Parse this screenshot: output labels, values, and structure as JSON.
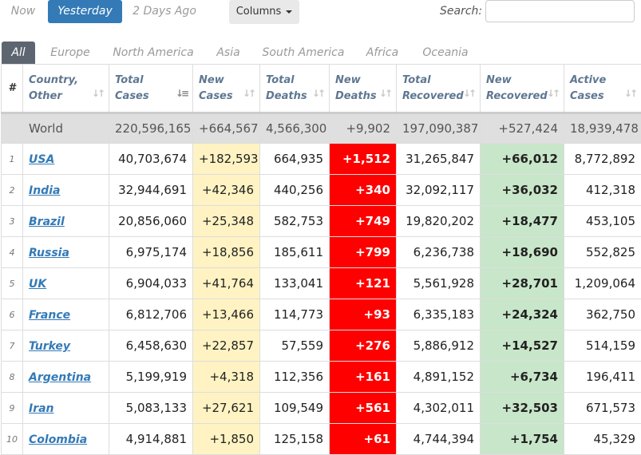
{
  "day_selector": {
    "now": "Now",
    "yesterday": "Yesterday",
    "two_days_ago": "2 Days Ago",
    "selected": "Yesterday"
  },
  "columns_button": {
    "label": "Columns"
  },
  "search": {
    "label": "Search:",
    "value": "",
    "placeholder": ""
  },
  "region_tabs": [
    "All",
    "Europe",
    "North America",
    "Asia",
    "South America",
    "Africa",
    "Oceania"
  ],
  "active_tab": "All",
  "colors": {
    "accent": "#337ab7",
    "new_cases_bg": "#fff3c3",
    "new_deaths_bg": "#ff0000",
    "new_recovered_bg": "#c8e6c9"
  },
  "table": {
    "headers": {
      "num": "#",
      "country_line1": "Country,",
      "country_line2": "Other",
      "total_cases_line1": "Total",
      "total_cases_line2": "Cases",
      "new_cases_line1": "New",
      "new_cases_line2": "Cases",
      "total_deaths_line1": "Total",
      "total_deaths_line2": "Deaths",
      "new_deaths_line1": "New",
      "new_deaths_line2": "Deaths",
      "total_recovered_line1": "Total",
      "total_recovered_line2": "Recovered",
      "new_recovered_line1": "New",
      "new_recovered_line2": "Recovered",
      "active_cases_line1": "Active",
      "active_cases_line2": "Cases"
    },
    "sorted_column": "Total Cases",
    "world": {
      "name": "World",
      "total_cases": "220,596,165",
      "new_cases": "+664,567",
      "total_deaths": "4,566,300",
      "new_deaths": "+9,902",
      "total_recovered": "197,090,387",
      "new_recovered": "+527,424",
      "active_cases": "18,939,478"
    },
    "rows": [
      {
        "num": "1",
        "country": "USA",
        "total_cases": "40,703,674",
        "new_cases": "+182,593",
        "total_deaths": "664,935",
        "new_deaths": "+1,512",
        "total_recovered": "31,265,847",
        "new_recovered": "+66,012",
        "active_cases": "8,772,892"
      },
      {
        "num": "2",
        "country": "India",
        "total_cases": "32,944,691",
        "new_cases": "+42,346",
        "total_deaths": "440,256",
        "new_deaths": "+340",
        "total_recovered": "32,092,117",
        "new_recovered": "+36,032",
        "active_cases": "412,318"
      },
      {
        "num": "3",
        "country": "Brazil",
        "total_cases": "20,856,060",
        "new_cases": "+25,348",
        "total_deaths": "582,753",
        "new_deaths": "+749",
        "total_recovered": "19,820,202",
        "new_recovered": "+18,477",
        "active_cases": "453,105"
      },
      {
        "num": "4",
        "country": "Russia",
        "total_cases": "6,975,174",
        "new_cases": "+18,856",
        "total_deaths": "185,611",
        "new_deaths": "+799",
        "total_recovered": "6,236,738",
        "new_recovered": "+18,690",
        "active_cases": "552,825"
      },
      {
        "num": "5",
        "country": "UK",
        "total_cases": "6,904,033",
        "new_cases": "+41,764",
        "total_deaths": "133,041",
        "new_deaths": "+121",
        "total_recovered": "5,561,928",
        "new_recovered": "+28,701",
        "active_cases": "1,209,064"
      },
      {
        "num": "6",
        "country": "France",
        "total_cases": "6,812,706",
        "new_cases": "+13,466",
        "total_deaths": "114,773",
        "new_deaths": "+93",
        "total_recovered": "6,335,183",
        "new_recovered": "+24,324",
        "active_cases": "362,750"
      },
      {
        "num": "7",
        "country": "Turkey",
        "total_cases": "6,458,630",
        "new_cases": "+22,857",
        "total_deaths": "57,559",
        "new_deaths": "+276",
        "total_recovered": "5,886,912",
        "new_recovered": "+14,527",
        "active_cases": "514,159"
      },
      {
        "num": "8",
        "country": "Argentina",
        "total_cases": "5,199,919",
        "new_cases": "+4,318",
        "total_deaths": "112,356",
        "new_deaths": "+161",
        "total_recovered": "4,891,152",
        "new_recovered": "+6,734",
        "active_cases": "196,411"
      },
      {
        "num": "9",
        "country": "Iran",
        "total_cases": "5,083,133",
        "new_cases": "+27,621",
        "total_deaths": "109,549",
        "new_deaths": "+561",
        "total_recovered": "4,302,011",
        "new_recovered": "+32,503",
        "active_cases": "671,573"
      },
      {
        "num": "10",
        "country": "Colombia",
        "total_cases": "4,914,881",
        "new_cases": "+1,850",
        "total_deaths": "125,158",
        "new_deaths": "+61",
        "total_recovered": "4,744,394",
        "new_recovered": "+1,754",
        "active_cases": "45,329"
      }
    ]
  }
}
